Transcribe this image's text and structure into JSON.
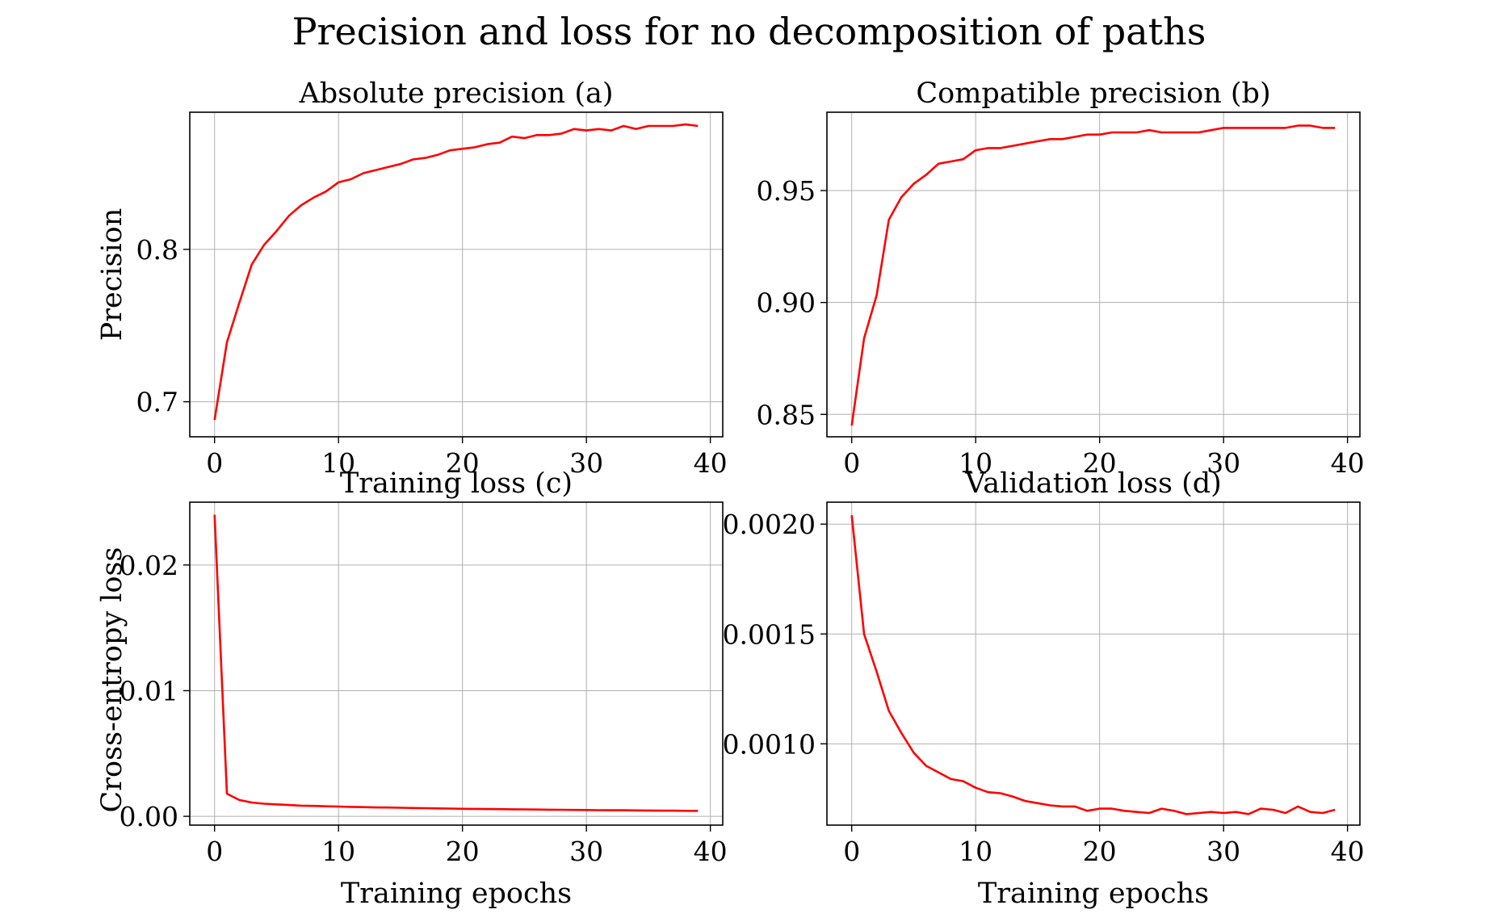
{
  "figure_title": "Precision and loss for no decomposition of paths",
  "chart_data": [
    {
      "type": "line",
      "title": "Absolute precision (a)",
      "xlabel": "",
      "ylabel": "Precision",
      "xlim": [
        -2,
        41
      ],
      "ylim": [
        0.677,
        0.89
      ],
      "xticks": [
        0,
        10,
        20,
        30,
        40
      ],
      "yticks": [
        0.7,
        0.8
      ],
      "ytick_labels": [
        "0.7",
        "0.8"
      ],
      "grid": true,
      "color": "#ff0000",
      "x": [
        0,
        1,
        2,
        3,
        4,
        5,
        6,
        7,
        8,
        9,
        10,
        11,
        12,
        13,
        14,
        15,
        16,
        17,
        18,
        19,
        20,
        21,
        22,
        23,
        24,
        25,
        26,
        27,
        28,
        29,
        30,
        31,
        32,
        33,
        34,
        35,
        36,
        37,
        38,
        39
      ],
      "y": [
        0.688,
        0.739,
        0.765,
        0.79,
        0.803,
        0.812,
        0.822,
        0.829,
        0.834,
        0.838,
        0.844,
        0.846,
        0.85,
        0.852,
        0.854,
        0.856,
        0.859,
        0.86,
        0.862,
        0.865,
        0.866,
        0.867,
        0.869,
        0.87,
        0.874,
        0.873,
        0.875,
        0.875,
        0.876,
        0.879,
        0.878,
        0.879,
        0.878,
        0.881,
        0.879,
        0.881,
        0.881,
        0.881,
        0.882,
        0.881
      ]
    },
    {
      "type": "line",
      "title": "Compatible precision (b)",
      "xlabel": "",
      "ylabel": "",
      "xlim": [
        -2,
        41
      ],
      "ylim": [
        0.84,
        0.985
      ],
      "xticks": [
        0,
        10,
        20,
        30,
        40
      ],
      "yticks": [
        0.85,
        0.9,
        0.95
      ],
      "ytick_labels": [
        "0.85",
        "0.90",
        "0.95"
      ],
      "grid": true,
      "color": "#ff0000",
      "x": [
        0,
        1,
        2,
        3,
        4,
        5,
        6,
        7,
        8,
        9,
        10,
        11,
        12,
        13,
        14,
        15,
        16,
        17,
        18,
        19,
        20,
        21,
        22,
        23,
        24,
        25,
        26,
        27,
        28,
        29,
        30,
        31,
        32,
        33,
        34,
        35,
        36,
        37,
        38,
        39
      ],
      "y": [
        0.845,
        0.884,
        0.903,
        0.937,
        0.947,
        0.953,
        0.957,
        0.962,
        0.963,
        0.964,
        0.968,
        0.969,
        0.969,
        0.97,
        0.971,
        0.972,
        0.973,
        0.973,
        0.974,
        0.975,
        0.975,
        0.976,
        0.976,
        0.976,
        0.977,
        0.976,
        0.976,
        0.976,
        0.976,
        0.977,
        0.978,
        0.978,
        0.978,
        0.978,
        0.978,
        0.978,
        0.979,
        0.979,
        0.978,
        0.978
      ]
    },
    {
      "type": "line",
      "title": "Training loss (c)",
      "xlabel": "Training epochs",
      "ylabel": "Cross-entropy loss",
      "xlim": [
        -2,
        41
      ],
      "ylim": [
        -0.0007,
        0.025
      ],
      "xticks": [
        0,
        10,
        20,
        30,
        40
      ],
      "yticks": [
        0.0,
        0.01,
        0.02
      ],
      "ytick_labels": [
        "0.00",
        "0.01",
        "0.02"
      ],
      "grid": true,
      "color": "#ff0000",
      "x": [
        0,
        1,
        2,
        3,
        4,
        5,
        6,
        7,
        8,
        9,
        10,
        11,
        12,
        13,
        14,
        15,
        16,
        17,
        18,
        19,
        20,
        21,
        22,
        23,
        24,
        25,
        26,
        27,
        28,
        29,
        30,
        31,
        32,
        33,
        34,
        35,
        36,
        37,
        38,
        39
      ],
      "y": [
        0.024,
        0.0018,
        0.0013,
        0.0011,
        0.001,
        0.00095,
        0.0009,
        0.00085,
        0.00083,
        0.0008,
        0.00078,
        0.00075,
        0.00073,
        0.00071,
        0.0007,
        0.00068,
        0.00066,
        0.00065,
        0.00063,
        0.00062,
        0.0006,
        0.00059,
        0.00058,
        0.00057,
        0.00056,
        0.00055,
        0.00054,
        0.00053,
        0.00052,
        0.00051,
        0.0005,
        0.00049,
        0.00048,
        0.00048,
        0.00047,
        0.00046,
        0.00045,
        0.00045,
        0.00044,
        0.00044
      ]
    },
    {
      "type": "line",
      "title": "Validation loss (d)",
      "xlabel": "Training epochs",
      "ylabel": "",
      "xlim": [
        -2,
        41
      ],
      "ylim": [
        0.00063,
        0.0021
      ],
      "xticks": [
        0,
        10,
        20,
        30,
        40
      ],
      "yticks": [
        0.001,
        0.0015,
        0.002
      ],
      "ytick_labels": [
        "0.0010",
        "0.0015",
        "0.0020"
      ],
      "grid": true,
      "color": "#ff0000",
      "x": [
        0,
        1,
        2,
        3,
        4,
        5,
        6,
        7,
        8,
        9,
        10,
        11,
        12,
        13,
        14,
        15,
        16,
        17,
        18,
        19,
        20,
        21,
        22,
        23,
        24,
        25,
        26,
        27,
        28,
        29,
        30,
        31,
        32,
        33,
        34,
        35,
        36,
        37,
        38,
        39
      ],
      "y": [
        0.00204,
        0.0015,
        0.00133,
        0.00115,
        0.00105,
        0.00096,
        0.0009,
        0.00087,
        0.00084,
        0.00083,
        0.0008,
        0.00078,
        0.000775,
        0.00076,
        0.00074,
        0.00073,
        0.00072,
        0.000715,
        0.000715,
        0.000695,
        0.000705,
        0.000705,
        0.000695,
        0.00069,
        0.000685,
        0.000705,
        0.000695,
        0.00068,
        0.000685,
        0.00069,
        0.000685,
        0.00069,
        0.00068,
        0.000705,
        0.0007,
        0.000685,
        0.000715,
        0.00069,
        0.000685,
        0.0007
      ]
    }
  ]
}
